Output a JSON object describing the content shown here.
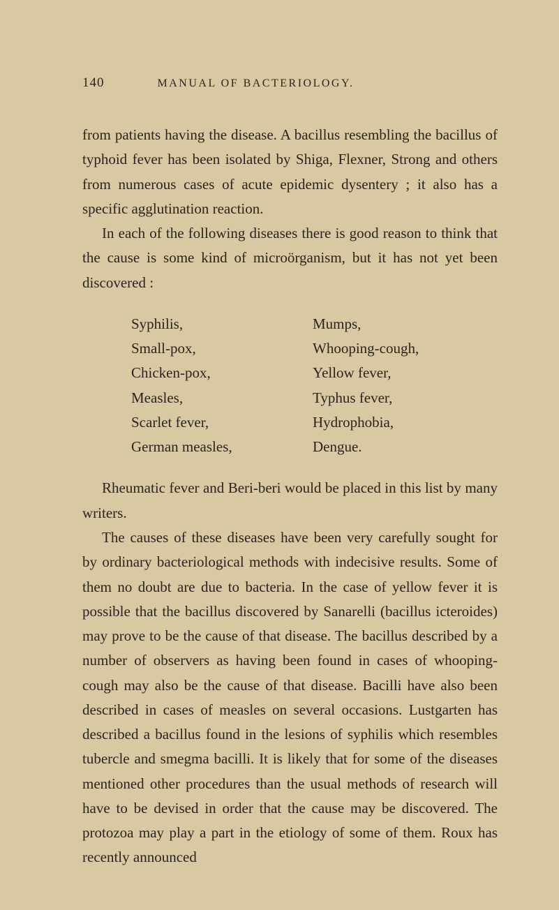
{
  "page_number": "140",
  "header_title": "MANUAL OF BACTERIOLOGY.",
  "paragraphs": {
    "p1": "from patients having the disease. A bacillus resembling the bacillus of typhoid fever has been isolated by Shiga, Flexner, Strong and others from numerous cases of acute epidemic dysentery ; it also has a specific agglutination reaction.",
    "p2": "In each of the following diseases there is good reason to think that the cause is some kind of microörganism, but it has not yet been discovered :",
    "p3": "Rheumatic fever and Beri-beri would be placed in this list by many writers.",
    "p4": "The causes of these diseases have been very carefully sought for by ordinary bacteriological methods with inde­cisive results. Some of them no doubt are due to bacteria. In the case of yellow fever it is possible that the bacillus discovered by Sanarelli (bacillus icteroides) may prove to be the cause of that disease. The bacillus described by a number of observers as having been found in cases of whooping-cough may also be the cause of that disease. Bacilli have also been described in cases of measles on several occasions. Lustgarten has described a bacillus found in the lesions of syphilis which resembles tubercle and smegma bacilli. It is likely that for some of the dis­eases mentioned other procedures than the usual methods of research will have to be devised in order that the cause may be discovered. The protozoa may play a part in the etiology of some of them. Roux has recently announced"
  },
  "disease_list": {
    "left": [
      "Syphilis,",
      "Small-pox,",
      "Chicken-pox,",
      "Measles,",
      "Scarlet fever,",
      "German measles,"
    ],
    "right": [
      "Mumps,",
      "Whooping-cough,",
      "Yellow fever,",
      "Typhus fever,",
      "Hydrophobia,",
      "Dengue."
    ]
  },
  "colors": {
    "background": "#d8c9a3",
    "text": "#2a2420"
  },
  "typography": {
    "body_fontsize": 21,
    "header_fontsize": 16,
    "page_number_fontsize": 19,
    "line_height": 1.68,
    "font_family": "Georgia, Times New Roman, serif"
  }
}
